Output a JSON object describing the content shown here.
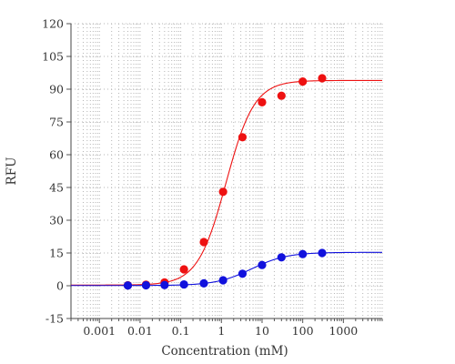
{
  "chart_data": {
    "type": "scatter",
    "title": "",
    "xlabel": "Concentration (mM)",
    "ylabel": "RFU",
    "xscale": "log",
    "xlim": [
      0.0002,
      9000
    ],
    "ylim": [
      -15,
      120
    ],
    "grid": true,
    "legend": "none",
    "x_ticks": [
      0.001,
      0.01,
      0.1,
      1,
      10,
      100,
      1000
    ],
    "x_tick_labels": [
      "0.001",
      "0.01",
      "0.1",
      "1",
      "10",
      "100",
      "1000"
    ],
    "y_ticks": [
      -15,
      0,
      15,
      30,
      45,
      60,
      75,
      90,
      105,
      120
    ],
    "y_tick_labels": [
      "-15",
      "0",
      "15",
      "30",
      "45",
      "60",
      "75",
      "90",
      "105",
      "120"
    ],
    "series": [
      {
        "color": "#ee1111",
        "x": [
          0.005,
          0.014,
          0.04,
          0.12,
          0.37,
          1.1,
          3.3,
          10,
          30,
          100,
          300
        ],
        "y": [
          0.2,
          0.5,
          1.5,
          7.5,
          20,
          43,
          68,
          84,
          87,
          93.5,
          95
        ],
        "fit": {
          "bottom": 0.3,
          "top": 94,
          "ec50": 1.3,
          "hill": 1.25
        }
      },
      {
        "color": "#1111dd",
        "x": [
          0.005,
          0.014,
          0.04,
          0.12,
          0.37,
          1.1,
          3.3,
          10,
          30,
          100,
          300
        ],
        "y": [
          0.1,
          0.2,
          0.3,
          0.6,
          1.1,
          2.5,
          5.5,
          9.5,
          13,
          14.5,
          15
        ],
        "fit": {
          "bottom": 0.1,
          "top": 15.3,
          "ec50": 5.5,
          "hill": 1.0
        }
      }
    ]
  }
}
